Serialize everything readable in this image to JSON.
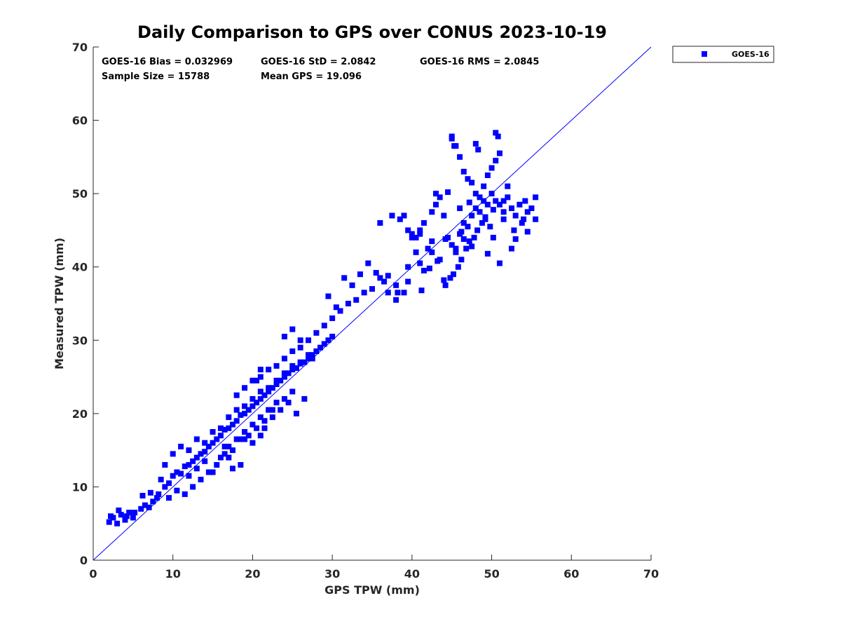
{
  "stats": {
    "bias": "GOES-16 Bias = 0.032969",
    "std": "GOES-16 StD = 2.0842",
    "rms": "GOES-16 RMS = 2.0845",
    "sample_size": "Sample Size = 15788",
    "mean_gps": "Mean GPS = 19.096"
  },
  "colors": {
    "series": "#0000ff",
    "axis": "#262626",
    "background": "#ffffff"
  },
  "chart_data": {
    "type": "scatter",
    "title": "Daily Comparison to GPS over CONUS 2023-10-19",
    "xlabel": "GPS TPW (mm)",
    "ylabel": "Measured TPW (mm)",
    "xlim": [
      0,
      70
    ],
    "ylim": [
      0,
      70
    ],
    "xticks": [
      0,
      10,
      20,
      30,
      40,
      50,
      60,
      70
    ],
    "yticks": [
      0,
      10,
      20,
      30,
      40,
      50,
      60,
      70
    ],
    "grid": false,
    "legend_position": "outside-top-right",
    "reference_line": {
      "x": [
        0,
        70
      ],
      "y": [
        0,
        70
      ]
    },
    "series": [
      {
        "name": "GOES-16",
        "marker": "square",
        "color": "#0000ff",
        "x": [
          2.0,
          2.5,
          3.0,
          3.5,
          4.0,
          4.5,
          5.0,
          2.2,
          3.2,
          4.2,
          5.2,
          6.0,
          6.5,
          7.0,
          7.5,
          8.0,
          6.2,
          7.2,
          8.2,
          9.0,
          9.5,
          8.5,
          10.0,
          10.5,
          11.0,
          11.5,
          12.0,
          12.5,
          13.0,
          13.5,
          14.0,
          14.5,
          15.0,
          15.5,
          16.0,
          16.5,
          17.0,
          17.5,
          18.0,
          18.5,
          19.0,
          19.5,
          20.0,
          20.5,
          21.0,
          21.5,
          22.0,
          22.5,
          23.0,
          23.5,
          24.0,
          24.5,
          25.0,
          25.5,
          26.0,
          26.5,
          27.0,
          27.5,
          28.0,
          28.5,
          29.0,
          29.5,
          30.0,
          9.0,
          10.0,
          11.0,
          12.0,
          13.0,
          14.0,
          15.0,
          16.0,
          17.0,
          18.0,
          19.0,
          20.0,
          21.0,
          22.0,
          23.0,
          24.0,
          25.0,
          26.0,
          11.5,
          12.5,
          13.5,
          14.5,
          15.5,
          16.5,
          17.5,
          18.5,
          19.5,
          20.5,
          21.5,
          22.5,
          9.5,
          10.5,
          12.0,
          13.0,
          14.0,
          15.0,
          16.0,
          17.0,
          18.0,
          19.0,
          20.0,
          21.0,
          22.0,
          23.0,
          24.0,
          25.0,
          18.0,
          19.0,
          20.0,
          21.0,
          22.0,
          23.0,
          24.0,
          25.0,
          26.0,
          27.0,
          28.0,
          29.0,
          30.0,
          31.0,
          32.0,
          33.0,
          34.0,
          35.0,
          31.5,
          32.5,
          33.5,
          34.5,
          35.5,
          36.0,
          37.0,
          38.0,
          36.5,
          30.5,
          29.5,
          24.0,
          25.0,
          26.0,
          27.0,
          27.5,
          21.0,
          21.5,
          19.0,
          20.0,
          22.5,
          23.5,
          20.5,
          21.0,
          24.5,
          25.5,
          26.5,
          18.5,
          17.0,
          17.5,
          16.5,
          38.5,
          39.0,
          39.5,
          40.0,
          40.5,
          41.0,
          41.5,
          42.0,
          42.5,
          43.0,
          43.5,
          44.0,
          44.5,
          45.0,
          45.5,
          46.0,
          46.5,
          47.0,
          47.5,
          48.0,
          48.5,
          49.0,
          49.5,
          50.0,
          50.5,
          51.0,
          51.5,
          52.0,
          52.5,
          53.0,
          53.5,
          54.0,
          54.5,
          55.0,
          55.5,
          44.2,
          44.8,
          45.2,
          45.8,
          46.2,
          46.8,
          47.2,
          47.8,
          48.2,
          48.8,
          49.2,
          49.8,
          50.2,
          45.0,
          45.5,
          46.0,
          46.5,
          47.0,
          47.5,
          48.0,
          48.5,
          49.0,
          49.5,
          50.0,
          50.5,
          51.0,
          45.0,
          45.3,
          48.0,
          48.3,
          50.5,
          50.8,
          46.0,
          43.0,
          44.5,
          51.5,
          52.0,
          39.0,
          39.5,
          41.0,
          41.5,
          42.5,
          43.5,
          44.0,
          40.0,
          41.0,
          42.5,
          37.0,
          38.0,
          38.2,
          39.5,
          36.0,
          37.5,
          40.5,
          45.5,
          46.5,
          47.5,
          49.5,
          51.0,
          52.5,
          53.0,
          54.5,
          55.5,
          51.5,
          52.8,
          53.8,
          54.2,
          50.2,
          49.2,
          47.2,
          46.2,
          44.2,
          43.2,
          42.2,
          41.2
        ],
        "y": [
          5.2,
          5.8,
          5.0,
          6.2,
          5.5,
          6.5,
          5.8,
          6.0,
          6.8,
          6.0,
          6.5,
          7.0,
          7.5,
          7.2,
          8.0,
          8.5,
          8.8,
          9.2,
          9.0,
          10.0,
          10.5,
          11.0,
          11.5,
          12.0,
          11.8,
          12.8,
          13.0,
          13.5,
          14.0,
          14.5,
          14.8,
          15.5,
          16.0,
          16.5,
          17.0,
          17.8,
          18.0,
          18.5,
          19.0,
          19.8,
          20.0,
          20.5,
          21.0,
          21.5,
          22.0,
          22.5,
          23.0,
          23.5,
          24.0,
          24.5,
          25.0,
          25.5,
          26.0,
          26.2,
          26.8,
          27.0,
          27.5,
          28.0,
          28.5,
          29.0,
          29.5,
          30.0,
          30.5,
          13.0,
          14.5,
          15.5,
          15.0,
          16.5,
          16.0,
          17.5,
          18.0,
          19.5,
          20.5,
          21.0,
          22.0,
          23.0,
          23.5,
          24.5,
          25.5,
          26.5,
          27.0,
          9.0,
          10.0,
          11.0,
          12.0,
          13.0,
          14.5,
          15.0,
          16.5,
          17.0,
          18.0,
          19.0,
          20.5,
          8.5,
          9.5,
          11.5,
          12.5,
          13.5,
          12.0,
          14.0,
          15.5,
          16.5,
          17.5,
          18.5,
          19.5,
          20.5,
          21.5,
          22.0,
          23.0,
          22.5,
          23.5,
          24.5,
          25.0,
          26.0,
          26.5,
          27.5,
          28.5,
          29.0,
          30.0,
          31.0,
          32.0,
          33.0,
          34.0,
          35.0,
          35.5,
          36.5,
          37.0,
          38.5,
          37.5,
          39.0,
          40.5,
          39.2,
          38.5,
          36.5,
          37.5,
          38.0,
          34.5,
          36.0,
          30.5,
          31.5,
          30.0,
          28.0,
          27.5,
          17.0,
          18.0,
          16.5,
          16.0,
          19.5,
          20.5,
          24.5,
          26.0,
          21.5,
          20.0,
          22.0,
          13.0,
          14.0,
          12.5,
          15.5,
          46.5,
          47.0,
          45.0,
          44.0,
          42.0,
          44.5,
          46.0,
          42.5,
          47.5,
          48.5,
          49.5,
          47.0,
          44.0,
          43.0,
          42.0,
          44.5,
          46.0,
          45.5,
          47.0,
          48.0,
          47.5,
          49.0,
          48.5,
          50.0,
          49.0,
          48.5,
          47.5,
          49.5,
          48.0,
          47.0,
          48.5,
          46.5,
          47.5,
          48.0,
          49.5,
          37.5,
          38.5,
          39.0,
          40.0,
          41.0,
          42.5,
          43.5,
          44.0,
          45.0,
          46.0,
          46.5,
          45.5,
          44.0,
          57.5,
          56.5,
          55.0,
          53.0,
          52.0,
          51.5,
          50.0,
          49.5,
          51.0,
          52.5,
          53.5,
          54.5,
          55.5,
          57.8,
          56.5,
          56.8,
          56.0,
          58.3,
          57.8,
          48.0,
          50.0,
          50.2,
          49.0,
          51.0,
          36.5,
          38.0,
          40.5,
          39.5,
          42.0,
          41.0,
          38.2,
          44.5,
          45.0,
          43.5,
          38.8,
          35.5,
          36.5,
          40.0,
          46.0,
          47.0,
          44.0,
          42.5,
          43.8,
          42.8,
          41.8,
          40.5,
          42.5,
          43.8,
          44.8,
          46.5,
          46.5,
          45.0,
          46.0,
          49.0,
          47.8,
          46.8,
          48.8,
          44.8,
          43.8,
          40.8,
          39.8,
          36.8
        ]
      }
    ]
  }
}
